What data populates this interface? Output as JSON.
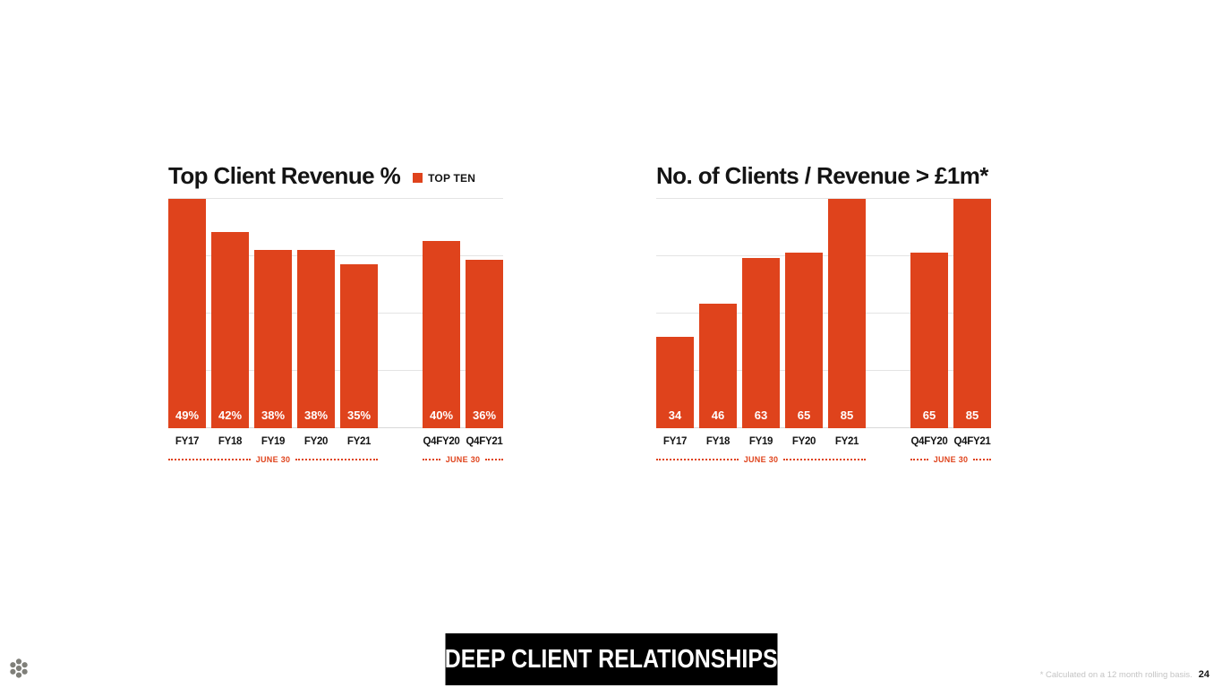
{
  "slide": {
    "banner_label": "DEEP CLIENT RELATIONSHIPS",
    "footnote": "* Calculated on a 12 month rolling basis.",
    "page_number": "24",
    "accent_color": "#DF431C"
  },
  "chart_data": [
    {
      "type": "bar",
      "title": "Top Client Revenue %",
      "legend_label": "TOP TEN",
      "legend_color": "#DF431C",
      "bar_color": "#DF431C",
      "ylim": [
        0,
        49
      ],
      "grid": true,
      "legend_position": "right-of-title",
      "groups": [
        {
          "categories": [
            "FY17",
            "FY18",
            "FY19",
            "FY20",
            "FY21"
          ],
          "values": [
            49,
            42,
            38,
            38,
            35
          ],
          "labels": [
            "49%",
            "42%",
            "38%",
            "38%",
            "35%"
          ],
          "axis_note": "JUNE 30"
        },
        {
          "categories": [
            "Q4FY20",
            "Q4FY21"
          ],
          "values": [
            40,
            36
          ],
          "labels": [
            "40%",
            "36%"
          ],
          "axis_note": "JUNE 30"
        }
      ]
    },
    {
      "type": "bar",
      "title": "No. of Clients / Revenue > £1m*",
      "bar_color": "#DF431C",
      "ylim": [
        0,
        85
      ],
      "grid": true,
      "groups": [
        {
          "categories": [
            "FY17",
            "FY18",
            "FY19",
            "FY20",
            "FY21"
          ],
          "values": [
            34,
            46,
            63,
            65,
            85
          ],
          "labels": [
            "34",
            "46",
            "63",
            "65",
            "85"
          ],
          "axis_note": "JUNE 30"
        },
        {
          "categories": [
            "Q4FY20",
            "Q4FY21"
          ],
          "values": [
            65,
            85
          ],
          "labels": [
            "65",
            "85"
          ],
          "axis_note": "JUNE 30"
        }
      ]
    }
  ]
}
